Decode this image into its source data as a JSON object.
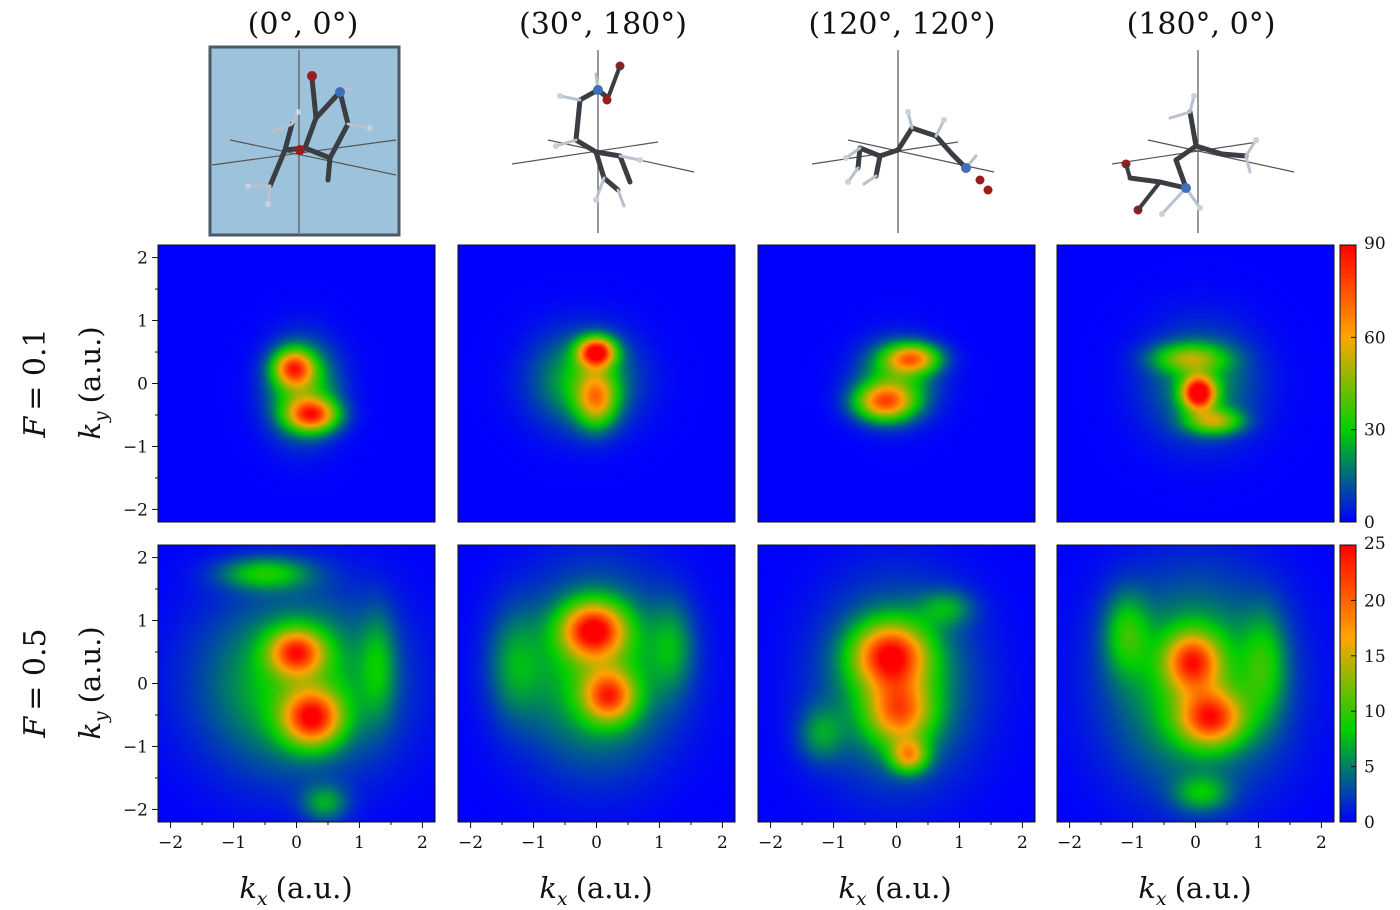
{
  "figure": {
    "column_titles": [
      "(0°, 0°)",
      "(30°, 180°)",
      "(120°, 120°)",
      "(180°, 0°)"
    ],
    "row_labels": [
      {
        "symbol": "F",
        "value": "= 0.1"
      },
      {
        "symbol": "F",
        "value": "= 0.5"
      }
    ],
    "highlighted_column": 0
  },
  "chart_data": {
    "type": "heatmap",
    "title": "",
    "xlabel": {
      "symbol": "k",
      "sub": "x",
      "unit": "(a.u.)"
    },
    "ylabel": {
      "symbol": "k",
      "sub": "y",
      "unit": "(a.u.)"
    },
    "xlim": [
      -2.2,
      2.2
    ],
    "ylim": [
      -2.2,
      2.2
    ],
    "x_ticks": [
      -2,
      -1,
      0,
      1,
      2
    ],
    "y_ticks": [
      -2,
      -1,
      0,
      1,
      2
    ],
    "x_tick_labels": [
      "−2",
      "−1",
      "0",
      "1",
      "2"
    ],
    "y_tick_labels": [
      "−2",
      "−1",
      "0",
      "1",
      "2"
    ],
    "colormap": [
      "#0000ff",
      "#00d000",
      "#ffa500",
      "#ff0000"
    ],
    "background_color": "#0000ff",
    "rows": [
      {
        "field": "F = 0.1",
        "colorbar": {
          "min": 0,
          "max": 90,
          "ticks": [
            0,
            30,
            60,
            90
          ],
          "tick_labels": [
            "0",
            "30",
            "60",
            "90"
          ]
        },
        "panels": [
          {
            "orientation": "(0°, 0°)",
            "peaks": [
              {
                "kx": -0.05,
                "ky": 0.25,
                "amp": 62,
                "sx": 0.22,
                "sy": 0.2
              },
              {
                "kx": 0.25,
                "ky": -0.5,
                "amp": 66,
                "sx": 0.28,
                "sy": 0.18
              },
              {
                "kx": 0.1,
                "ky": -0.1,
                "amp": 35,
                "sx": 0.38,
                "sy": 0.5
              }
            ]
          },
          {
            "orientation": "(30°, 180°)",
            "peaks": [
              {
                "kx": 0.0,
                "ky": 0.5,
                "amp": 85,
                "sx": 0.2,
                "sy": 0.16
              },
              {
                "kx": 0.0,
                "ky": -0.25,
                "amp": 48,
                "sx": 0.22,
                "sy": 0.3
              },
              {
                "kx": -0.2,
                "ky": 0.05,
                "amp": 30,
                "sx": 0.55,
                "sy": 0.5
              }
            ]
          },
          {
            "orientation": "(120°, 120°)",
            "peaks": [
              {
                "kx": 0.25,
                "ky": 0.4,
                "amp": 58,
                "sx": 0.3,
                "sy": 0.16
              },
              {
                "kx": -0.2,
                "ky": -0.3,
                "amp": 60,
                "sx": 0.32,
                "sy": 0.2
              },
              {
                "kx": 0.0,
                "ky": 0.05,
                "amp": 30,
                "sx": 0.42,
                "sy": 0.4
              }
            ]
          },
          {
            "orientation": "(180°, 0°)",
            "peaks": [
              {
                "kx": 0.05,
                "ky": -0.15,
                "amp": 90,
                "sx": 0.18,
                "sy": 0.18
              },
              {
                "kx": 0.3,
                "ky": -0.6,
                "amp": 42,
                "sx": 0.3,
                "sy": 0.14
              },
              {
                "kx": -0.1,
                "ky": 0.4,
                "amp": 36,
                "sx": 0.4,
                "sy": 0.16
              },
              {
                "kx": 0.1,
                "ky": 0.0,
                "amp": 22,
                "sx": 0.6,
                "sy": 0.6
              }
            ]
          }
        ]
      },
      {
        "field": "F = 0.5",
        "colorbar": {
          "min": 0,
          "max": 25,
          "ticks": [
            0,
            5,
            10,
            15,
            20,
            25
          ],
          "tick_labels": [
            "0",
            "5",
            "10",
            "15",
            "20",
            "25"
          ]
        },
        "panels": [
          {
            "orientation": "(0°, 0°)",
            "peaks": [
              {
                "kx": 0.0,
                "ky": 0.5,
                "amp": 17,
                "sx": 0.3,
                "sy": 0.25
              },
              {
                "kx": 0.25,
                "ky": -0.55,
                "amp": 19,
                "sx": 0.32,
                "sy": 0.3
              },
              {
                "kx": 0.0,
                "ky": 0.0,
                "amp": 9,
                "sx": 1.0,
                "sy": 0.95
              },
              {
                "kx": -0.5,
                "ky": 1.75,
                "amp": 8,
                "sx": 0.5,
                "sy": 0.18
              },
              {
                "kx": 0.45,
                "ky": -1.9,
                "amp": 6,
                "sx": 0.25,
                "sy": 0.2
              },
              {
                "kx": 1.3,
                "ky": 0.3,
                "amp": 5,
                "sx": 0.2,
                "sy": 0.6
              }
            ]
          },
          {
            "orientation": "(30°, 180°)",
            "peaks": [
              {
                "kx": -0.05,
                "ky": 0.85,
                "amp": 20,
                "sx": 0.35,
                "sy": 0.3
              },
              {
                "kx": 0.2,
                "ky": -0.2,
                "amp": 16,
                "sx": 0.28,
                "sy": 0.28
              },
              {
                "kx": 0.0,
                "ky": 0.2,
                "amp": 9,
                "sx": 0.8,
                "sy": 1.0
              },
              {
                "kx": -1.3,
                "ky": 0.3,
                "amp": 5,
                "sx": 0.3,
                "sy": 0.6
              },
              {
                "kx": 1.2,
                "ky": 0.6,
                "amp": 5,
                "sx": 0.25,
                "sy": 0.5
              }
            ]
          },
          {
            "orientation": "(120°, 120°)",
            "peaks": [
              {
                "kx": -0.1,
                "ky": 0.45,
                "amp": 19,
                "sx": 0.4,
                "sy": 0.35
              },
              {
                "kx": 0.05,
                "ky": -0.45,
                "amp": 14,
                "sx": 0.35,
                "sy": 0.35
              },
              {
                "kx": 0.2,
                "ky": -1.15,
                "amp": 13,
                "sx": 0.2,
                "sy": 0.18
              },
              {
                "kx": 0.0,
                "ky": 0.0,
                "amp": 8,
                "sx": 0.8,
                "sy": 1.0
              },
              {
                "kx": -1.2,
                "ky": -0.8,
                "amp": 5,
                "sx": 0.25,
                "sy": 0.3
              },
              {
                "kx": 0.8,
                "ky": 1.2,
                "amp": 5,
                "sx": 0.3,
                "sy": 0.2
              }
            ]
          },
          {
            "orientation": "(180°, 0°)",
            "peaks": [
              {
                "kx": -0.05,
                "ky": 0.35,
                "amp": 16,
                "sx": 0.3,
                "sy": 0.32
              },
              {
                "kx": 0.25,
                "ky": -0.55,
                "amp": 17,
                "sx": 0.35,
                "sy": 0.3
              },
              {
                "kx": 0.0,
                "ky": 0.0,
                "amp": 9,
                "sx": 0.9,
                "sy": 1.1
              },
              {
                "kx": -1.1,
                "ky": 0.8,
                "amp": 7,
                "sx": 0.25,
                "sy": 0.45
              },
              {
                "kx": 1.1,
                "ky": 0.3,
                "amp": 6,
                "sx": 0.25,
                "sy": 0.6
              },
              {
                "kx": 0.1,
                "ky": -1.75,
                "amp": 6,
                "sx": 0.3,
                "sy": 0.2
              }
            ]
          }
        ]
      }
    ]
  }
}
